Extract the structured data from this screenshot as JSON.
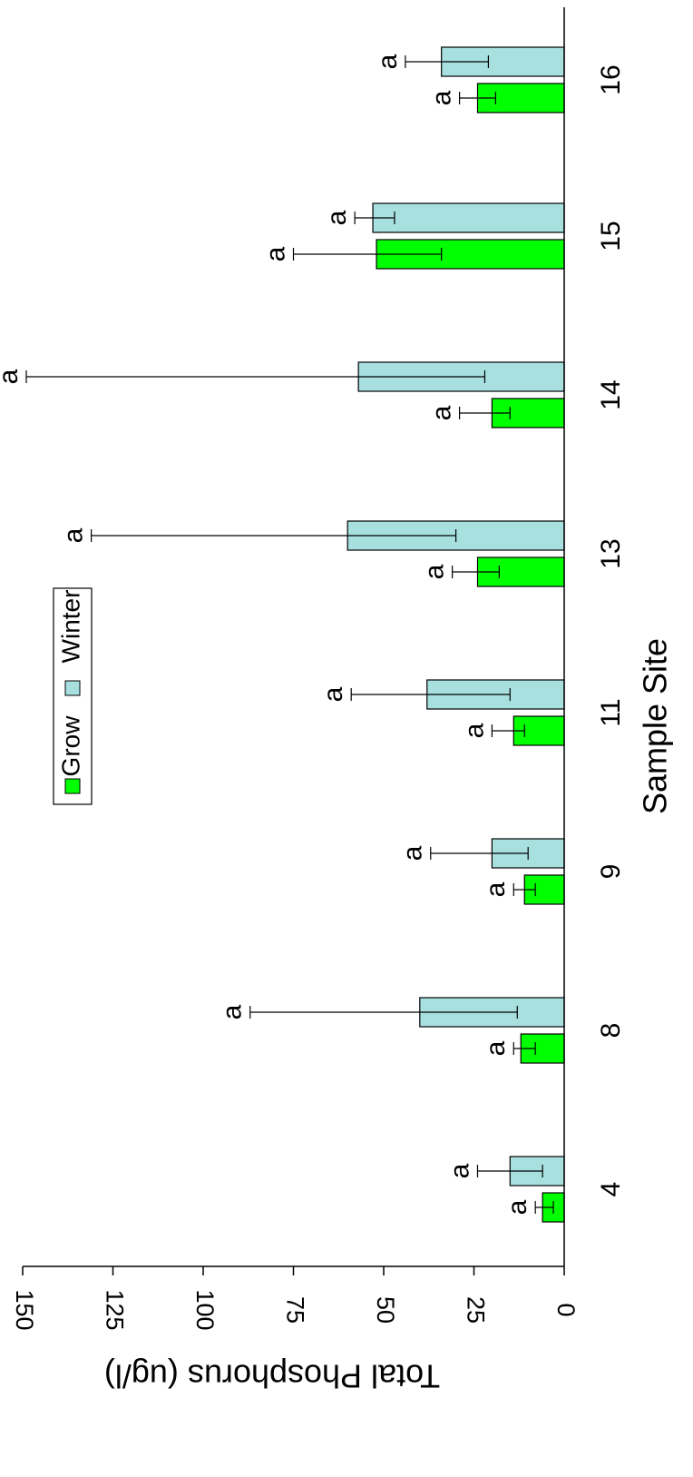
{
  "chart_data": {
    "type": "bar",
    "orientation": "rotated-90",
    "title": "",
    "xlabel": "Sample Site",
    "ylabel": "Total Phosphorus  (ug/l)",
    "ylim": [
      0,
      150
    ],
    "yticks": [
      0,
      25,
      50,
      75,
      100,
      125,
      150
    ],
    "categories": [
      "4",
      "8",
      "9",
      "11",
      "13",
      "14",
      "15",
      "16"
    ],
    "series": [
      {
        "name": "Grow",
        "color": "#00ff00",
        "values": [
          6,
          12,
          11,
          14,
          24,
          20,
          52,
          24
        ],
        "err_low": [
          3,
          8,
          8,
          11,
          18,
          15,
          34,
          19
        ],
        "err_high": [
          8,
          14,
          14,
          20,
          31,
          29,
          75,
          29
        ],
        "sig_labels": [
          "a",
          "a",
          "a",
          "a",
          "a",
          "a",
          "a",
          "a"
        ]
      },
      {
        "name": "Winter",
        "color": "#a8e0e0",
        "values": [
          15,
          40,
          20,
          38,
          60,
          57,
          53,
          34
        ],
        "err_low": [
          6,
          13,
          10,
          15,
          30,
          22,
          47,
          21
        ],
        "err_high": [
          24,
          87,
          37,
          59,
          131,
          149,
          58,
          44
        ],
        "sig_labels": [
          "a",
          "a",
          "a",
          "a",
          "a",
          "a",
          "a",
          "a"
        ]
      }
    ],
    "legend": {
      "placement": "top-right",
      "entries": [
        "Grow",
        "Winter"
      ]
    },
    "grid": false
  }
}
